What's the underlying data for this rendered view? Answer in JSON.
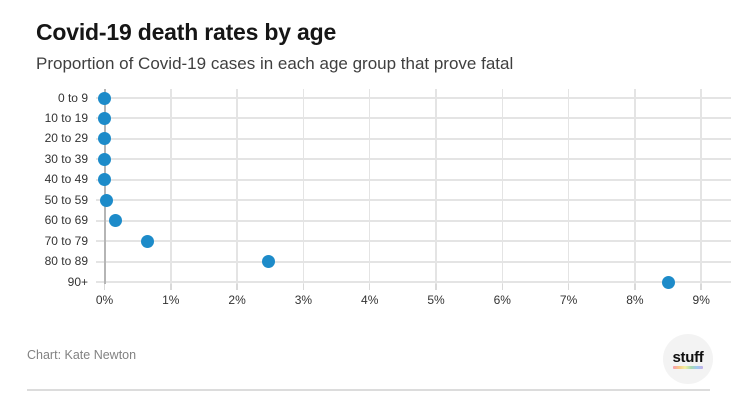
{
  "chart_data": {
    "type": "scatter",
    "title": "Covid-19 death rates by age",
    "subtitle": "Proportion of Covid-19 cases in each age group that prove fatal",
    "categories": [
      "0 to 9",
      "10 to 19",
      "20 to 29",
      "30 to 39",
      "40 to 49",
      "50 to 59",
      "60 to 69",
      "70 to 79",
      "80 to 89",
      "90+"
    ],
    "values": [
      0,
      0,
      0,
      0,
      0,
      0.03,
      0.17,
      0.65,
      2.47,
      8.5
    ],
    "unit": "%",
    "xlabel": "",
    "ylabel": "",
    "xlim": [
      0,
      9
    ],
    "x_tick_labels": [
      "0%",
      "1%",
      "2%",
      "3%",
      "4%",
      "5%",
      "6%",
      "7%",
      "8%",
      "9%"
    ],
    "grid": true,
    "legend_position": "none",
    "dot_color": "#1d8bc9"
  },
  "footer": {
    "credit": "Chart: Kate Newton",
    "logo_text": "stuff"
  },
  "colors": {
    "dot": "#1d8bc9",
    "gridline": "#e4e4e4",
    "axis_line": "#b5b5b5",
    "tick_stub": "#d9d9d9",
    "title": "#161616",
    "subtitle": "#3f3f3f",
    "tick_label": "#333333",
    "credit": "#828282",
    "divider": "#dcdcdc",
    "logo_bg": "#f3f3f3"
  }
}
